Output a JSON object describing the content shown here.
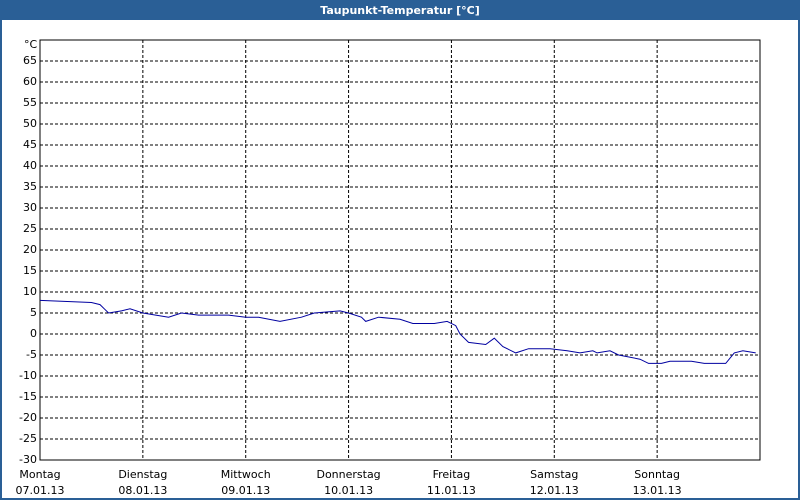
{
  "chart_data": {
    "type": "line",
    "title": "Taupunkt-Temperatur [°C]",
    "y_unit": "°C",
    "x": [
      0,
      12,
      14,
      15,
      16,
      19,
      21,
      24,
      30,
      33,
      37,
      44,
      48,
      51,
      56,
      61,
      64,
      70,
      72,
      75,
      76,
      79,
      84,
      87,
      92,
      95,
      97,
      98,
      100,
      104,
      106,
      108,
      111,
      114,
      119,
      123,
      126,
      129,
      130,
      133,
      135,
      140,
      142,
      145,
      147,
      152,
      155,
      160,
      162,
      164,
      167
    ],
    "series": [
      {
        "color": "#0000a0",
        "values": [
          8,
          7.5,
          7,
          6,
          5,
          5.5,
          6,
          5,
          4,
          5,
          4.5,
          4.5,
          4,
          4,
          3,
          4,
          5,
          5.5,
          5,
          4,
          3,
          4,
          3.5,
          2.5,
          2.5,
          3,
          2,
          0,
          -2,
          -2.5,
          -1,
          -3,
          -4.5,
          -3.5,
          -3.5,
          -4,
          -4.5,
          -4,
          -4.5,
          -4,
          -5,
          -6,
          -7,
          -7,
          -6.5,
          -6.5,
          -7,
          -7,
          -4.5,
          -4,
          -4.5
        ]
      }
    ],
    "xlim": [
      0,
      168
    ],
    "xticks": [
      {
        "value": 0,
        "label": "Montag"
      },
      {
        "value": 24,
        "label": "Dienstag"
      },
      {
        "value": 48,
        "label": "Mittwoch"
      },
      {
        "value": 72,
        "label": "Donnerstag"
      },
      {
        "value": 96,
        "label": "Freitag"
      },
      {
        "value": 120,
        "label": "Samstag"
      },
      {
        "value": 144,
        "label": "Sonntag"
      }
    ],
    "xtick_dates": [
      "07.01.13",
      "08.01.13",
      "09.01.13",
      "10.01.13",
      "11.01.13",
      "12.01.13",
      "13.01.13"
    ],
    "ylim": [
      -30,
      70
    ],
    "yticks": [
      -30,
      -25,
      -20,
      -15,
      -10,
      -5,
      0,
      5,
      10,
      15,
      20,
      25,
      30,
      35,
      40,
      45,
      50,
      55,
      60,
      65
    ],
    "grid": true
  }
}
